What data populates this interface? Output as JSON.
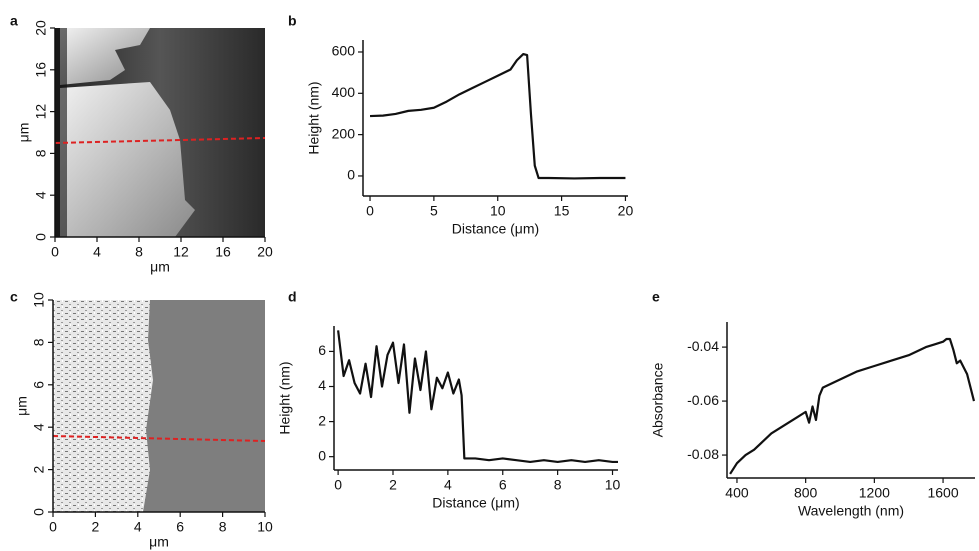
{
  "chart_data": [
    {
      "type": "image",
      "panel_label": "a",
      "xlabel": "μm",
      "ylabel": "μm",
      "xlim": [
        0,
        20
      ],
      "ylim": [
        0,
        20
      ],
      "xticks": [
        0,
        4,
        8,
        12,
        16,
        20
      ],
      "yticks": [
        0,
        4,
        8,
        12,
        16,
        20
      ]
    },
    {
      "type": "line",
      "panel_label": "b",
      "xlabel": "Distance (μm)",
      "ylabel": "Height (nm)",
      "color": "#111111",
      "xlim": [
        -0.55,
        20.2
      ],
      "ylim": [
        -97,
        658
      ],
      "xticks": [
        0,
        5,
        10,
        15,
        20
      ],
      "yticks": [
        0,
        200,
        400,
        600
      ],
      "x": [
        0,
        1,
        2,
        3,
        4,
        5,
        6,
        7,
        8,
        9,
        10,
        11,
        11.5,
        12,
        12.3,
        12.6,
        12.9,
        13.2,
        14,
        16,
        18,
        20
      ],
      "values": [
        290,
        292,
        300,
        315,
        320,
        330,
        360,
        395,
        425,
        455,
        485,
        515,
        560,
        590,
        585,
        300,
        50,
        -10,
        -10,
        -12,
        -10,
        -10
      ]
    },
    {
      "type": "image",
      "panel_label": "c",
      "xlabel": "μm",
      "ylabel": "μm",
      "xlim": [
        0,
        10
      ],
      "ylim": [
        0,
        10
      ],
      "xticks": [
        0,
        2,
        4,
        6,
        8,
        10
      ],
      "yticks": [
        0,
        2,
        4,
        6,
        8,
        10
      ]
    },
    {
      "type": "line",
      "panel_label": "d",
      "xlabel": "Distance (μm)",
      "ylabel": "Height (nm)",
      "color": "#111111",
      "xlim": [
        -0.15,
        10.2
      ],
      "ylim": [
        -0.76,
        7.45
      ],
      "xticks": [
        0,
        2,
        4,
        6,
        8,
        10
      ],
      "yticks": [
        0,
        2,
        4,
        6
      ],
      "x": [
        0,
        0.2,
        0.4,
        0.6,
        0.8,
        1.0,
        1.2,
        1.4,
        1.6,
        1.8,
        2.0,
        2.2,
        2.4,
        2.6,
        2.8,
        3.0,
        3.2,
        3.4,
        3.6,
        3.8,
        4.0,
        4.2,
        4.4,
        4.5,
        4.6,
        5,
        5.5,
        6,
        6.5,
        7,
        7.5,
        8,
        8.5,
        9,
        9.5,
        10,
        10.2
      ],
      "values": [
        7.2,
        4.6,
        5.5,
        4.2,
        3.6,
        5.3,
        3.4,
        6.3,
        4.0,
        5.8,
        6.5,
        4.2,
        6.4,
        2.5,
        5.6,
        3.8,
        6.0,
        2.7,
        4.5,
        3.9,
        4.8,
        3.6,
        4.4,
        3.5,
        -0.1,
        -0.1,
        -0.2,
        -0.1,
        -0.2,
        -0.3,
        -0.2,
        -0.3,
        -0.2,
        -0.3,
        -0.2,
        -0.3,
        -0.3
      ]
    },
    {
      "type": "line",
      "panel_label": "e",
      "xlabel": "Wavelength (nm)",
      "ylabel": "Absorbance",
      "color": "#111111",
      "xlim": [
        342,
        1786
      ],
      "ylim": [
        -0.0885,
        -0.0307
      ],
      "xticks": [
        400,
        800,
        1200,
        1600
      ],
      "yticks": [
        -0.08,
        -0.06,
        -0.04
      ],
      "x": [
        360,
        400,
        450,
        500,
        550,
        600,
        650,
        700,
        750,
        800,
        820,
        840,
        860,
        880,
        900,
        1000,
        1100,
        1200,
        1300,
        1400,
        1500,
        1550,
        1600,
        1620,
        1640,
        1660,
        1680,
        1700,
        1740,
        1780
      ],
      "values": [
        -0.087,
        -0.083,
        -0.08,
        -0.078,
        -0.075,
        -0.072,
        -0.07,
        -0.068,
        -0.066,
        -0.064,
        -0.068,
        -0.062,
        -0.067,
        -0.058,
        -0.055,
        -0.052,
        -0.049,
        -0.047,
        -0.045,
        -0.043,
        -0.04,
        -0.039,
        -0.038,
        -0.037,
        -0.037,
        -0.041,
        -0.046,
        -0.045,
        -0.05,
        -0.06
      ]
    }
  ]
}
